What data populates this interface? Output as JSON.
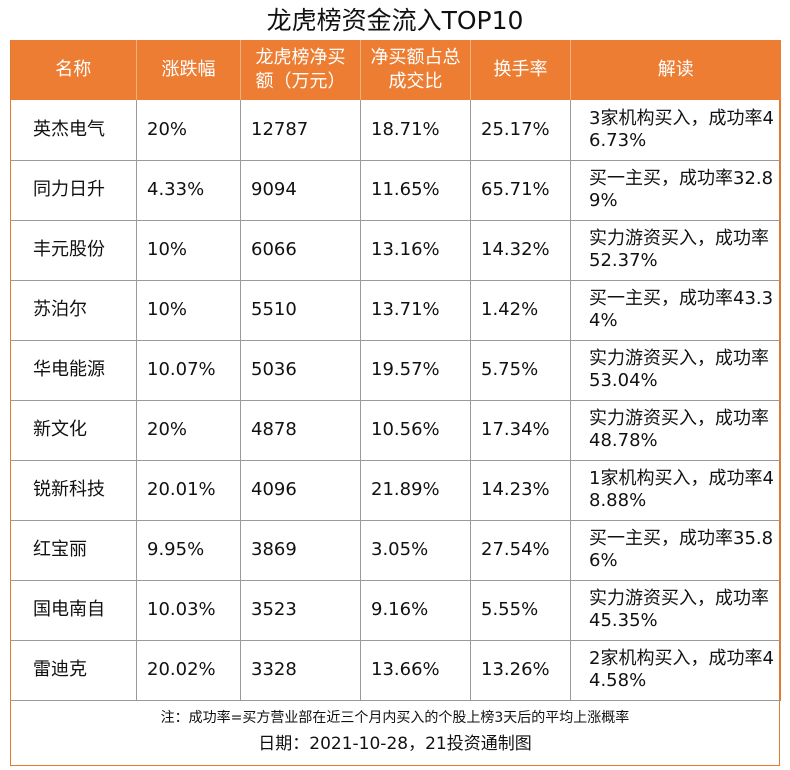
{
  "title": "龙虎榜资金流入TOP10",
  "headers": [
    "名称",
    "涨跌幅",
    "龙虎榜净买额（万元）",
    "净买额占总成交比",
    "换手率",
    "解读"
  ],
  "rows": [
    [
      "英杰电气",
      "20%",
      "12787",
      "18.71%",
      "25.17%",
      "3家机构买入，成功率46.73%"
    ],
    [
      "同力日升",
      "4.33%",
      "9094",
      "11.65%",
      "65.71%",
      "买一主买，成功率32.89%"
    ],
    [
      "丰元股份",
      "10%",
      "6066",
      "13.16%",
      "14.32%",
      "实力游资买入，成功率52.37%"
    ],
    [
      "苏泊尔",
      "10%",
      "5510",
      "13.71%",
      "1.42%",
      "买一主买，成功率43.34%"
    ],
    [
      "华电能源",
      "10.07%",
      "5036",
      "19.57%",
      "5.75%",
      "实力游资买入，成功率53.04%"
    ],
    [
      "新文化",
      "20%",
      "4878",
      "10.56%",
      "17.34%",
      "实力游资买入，成功率48.78%"
    ],
    [
      "锐新科技",
      "20.01%",
      "4096",
      "21.89%",
      "14.23%",
      "1家机构买入，成功率48.88%"
    ],
    [
      "红宝丽",
      "9.95%",
      "3869",
      "3.05%",
      "27.54%",
      "买一主买，成功率35.86%"
    ],
    [
      "国电南自",
      "10.03%",
      "3523",
      "9.16%",
      "5.55%",
      "实力游资买入，成功率45.35%"
    ],
    [
      "雷迪克",
      "20.02%",
      "3328",
      "13.66%",
      "13.26%",
      "2家机构买入，成功率44.58%"
    ]
  ],
  "note": "注：成功率=买方营业部在近三个月内买入的个股上榜3天后的平均上涨概率",
  "date_line": "日期：2021-10-28，21投资通制图",
  "colors": {
    "header_bg": "#ec7d32",
    "border": "#e07a30",
    "grid": "#9a9a9a"
  }
}
